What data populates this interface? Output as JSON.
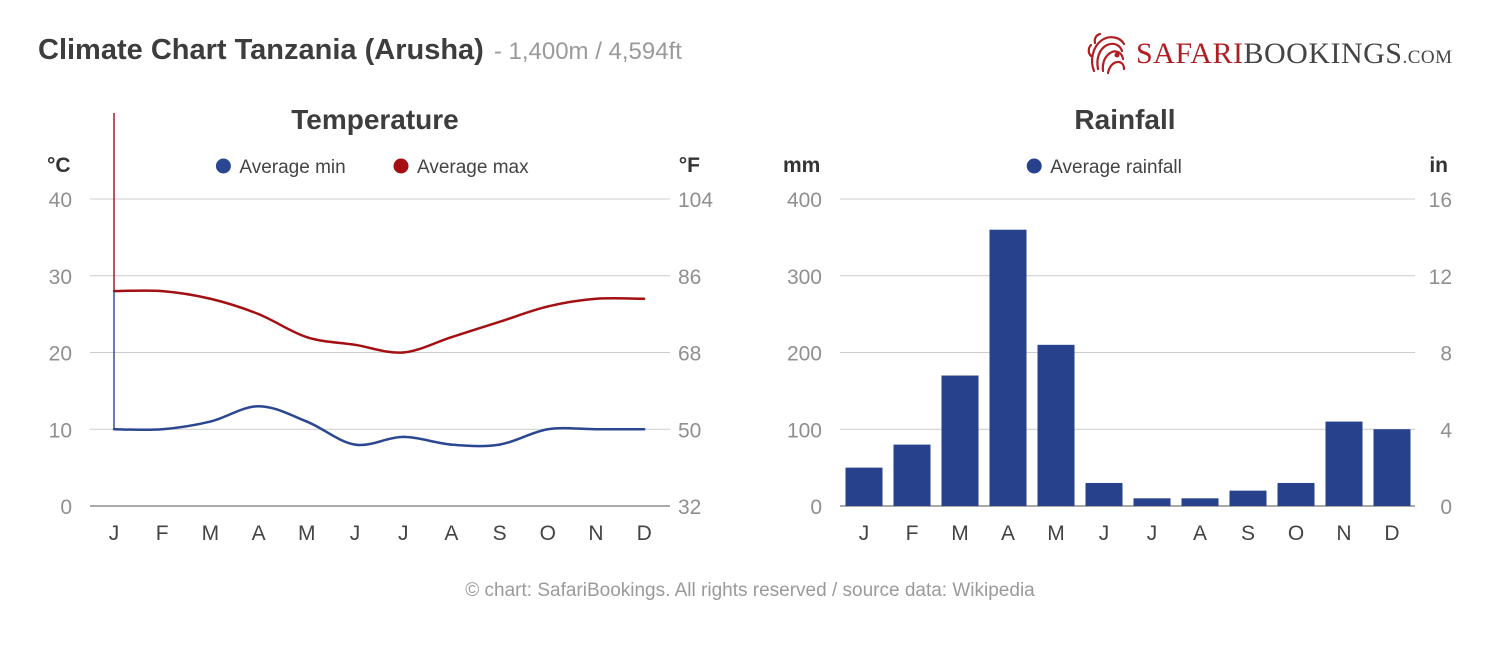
{
  "header": {
    "title": "Climate Chart Tanzania (Arusha)",
    "subtitle": "- 1,400m / 4,594ft"
  },
  "logo": {
    "part1": "SAFARI",
    "part2": "BOOKINGS",
    "part3": ".COM",
    "icon": "lion-head-icon"
  },
  "colors": {
    "min": "#2b4791",
    "max": "#a30f12",
    "bar": "#27418c",
    "grid": "#cccccc",
    "brand_red": "#b21d22"
  },
  "chart_data": [
    {
      "type": "line",
      "title": "Temperature",
      "left_unit": "°C",
      "right_unit": "°F",
      "categories": [
        "J",
        "F",
        "M",
        "A",
        "M",
        "J",
        "J",
        "A",
        "S",
        "O",
        "N",
        "D"
      ],
      "ylim": [
        0,
        40
      ],
      "y_ticks": [
        0,
        10,
        20,
        30,
        40
      ],
      "y_right_ticks": [
        32,
        50,
        68,
        86,
        104
      ],
      "legend_position": "top-center",
      "grid": true,
      "series": [
        {
          "name": "Average min",
          "values": [
            10,
            10,
            11,
            13,
            11,
            8,
            9,
            8,
            8,
            10,
            10,
            10
          ]
        },
        {
          "name": "Average max",
          "values": [
            28,
            28,
            27,
            25,
            22,
            21,
            20,
            22,
            24,
            26,
            27,
            27
          ]
        }
      ]
    },
    {
      "type": "bar",
      "title": "Rainfall",
      "left_unit": "mm",
      "right_unit": "in",
      "categories": [
        "J",
        "F",
        "M",
        "A",
        "M",
        "J",
        "J",
        "A",
        "S",
        "O",
        "N",
        "D"
      ],
      "ylim": [
        0,
        400
      ],
      "y_ticks": [
        0,
        100,
        200,
        300,
        400
      ],
      "y_right_ticks": [
        0,
        4,
        8,
        12,
        16
      ],
      "legend_position": "top-center",
      "grid": true,
      "series": [
        {
          "name": "Average rainfall",
          "values": [
            50,
            80,
            170,
            360,
            210,
            30,
            10,
            10,
            20,
            30,
            110,
            100
          ]
        }
      ]
    }
  ],
  "footer": "© chart: SafariBookings. All rights reserved / source data: Wikipedia"
}
